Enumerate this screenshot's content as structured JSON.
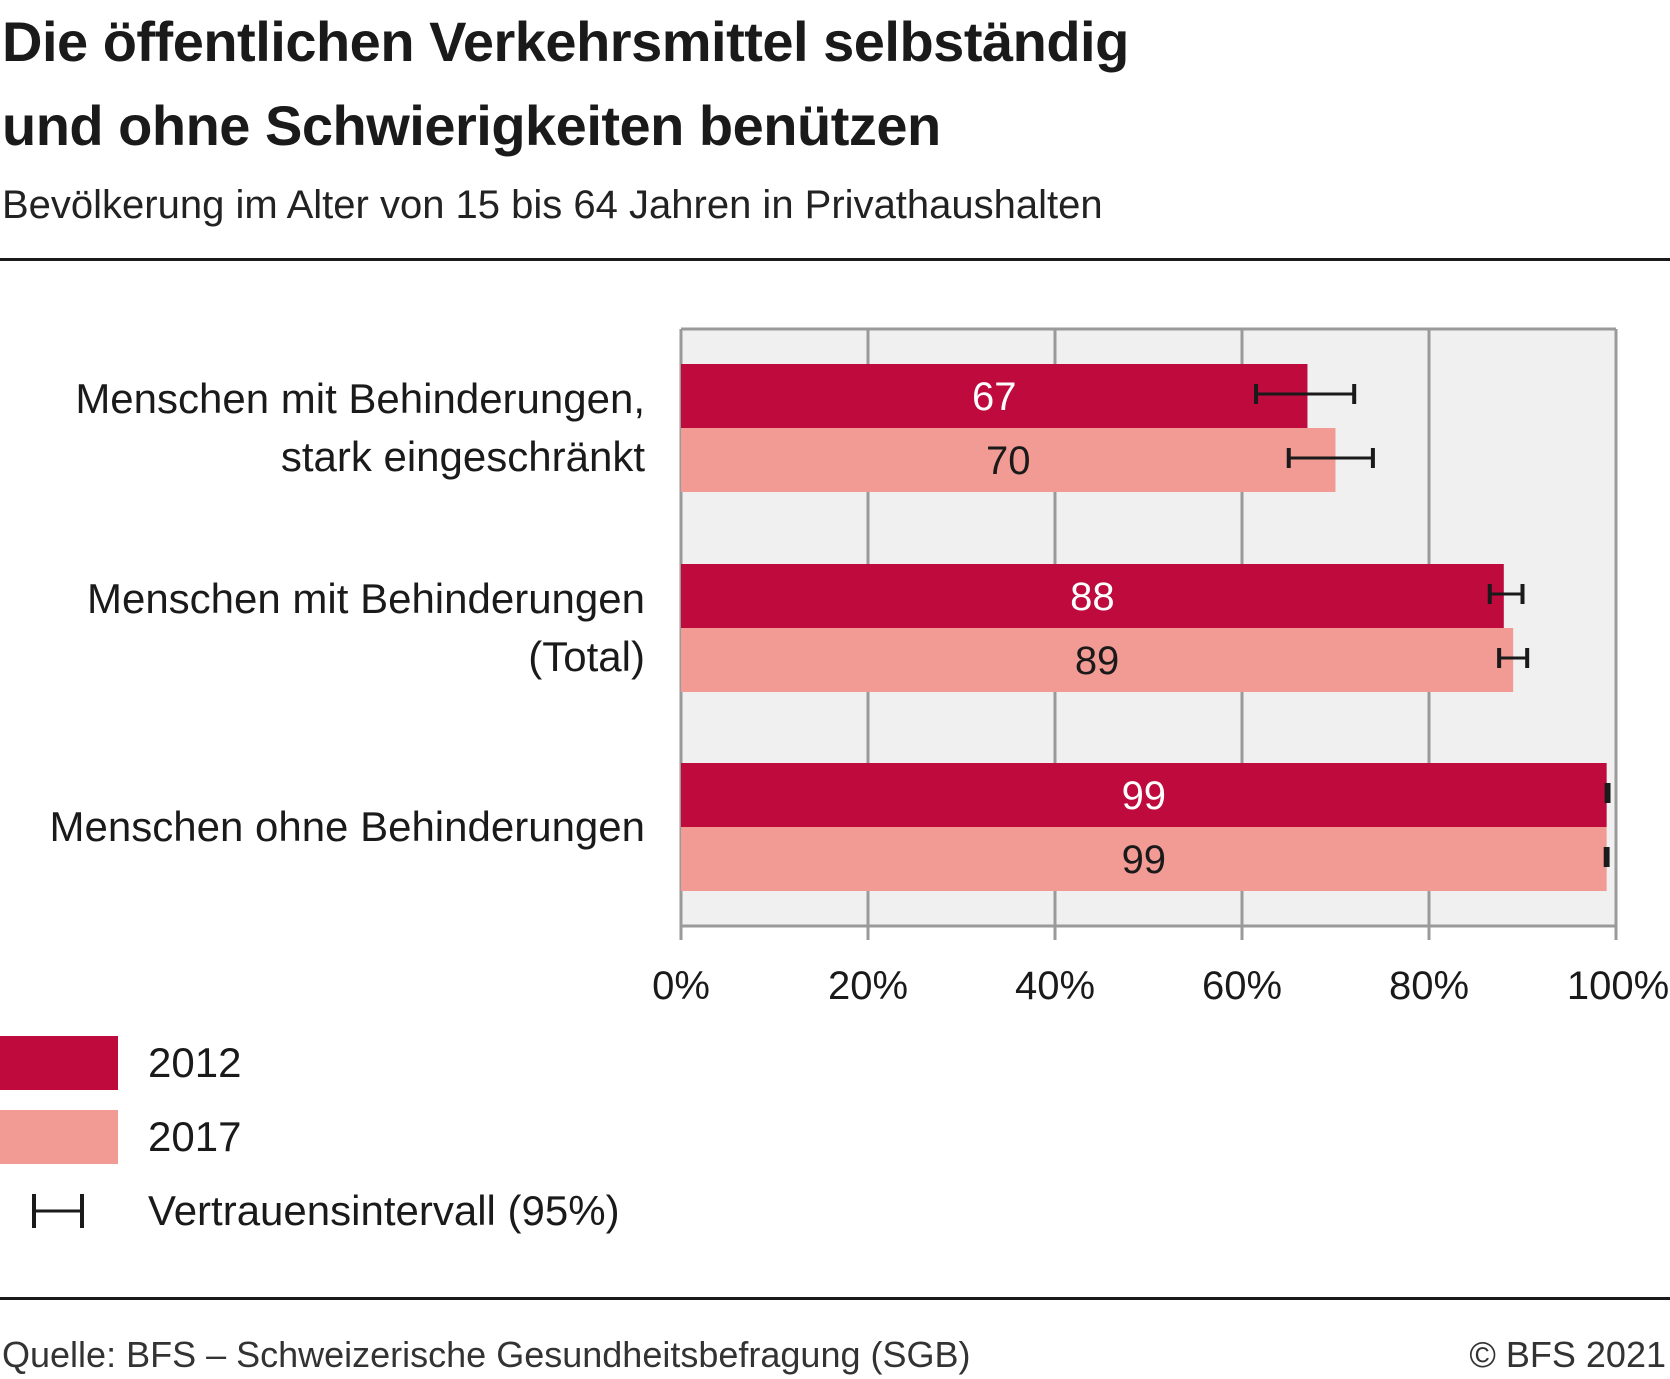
{
  "title_lines": [
    "Die öffentlichen Verkehrsmittel selbständig",
    "und ohne Schwierigkeiten benützen"
  ],
  "subtitle": "Bevölkerung im Alter von 15 bis 64 Jahren in Privathaushalten",
  "source": "Quelle: BFS – Schweizerische Gesundheitsbefragung (SGB)",
  "copyright": "© BFS 2021",
  "legend": {
    "series_2012": "2012",
    "series_2017": "2017",
    "ci": "Vertrauensintervall (95%)"
  },
  "colors": {
    "series_2012": "#be0a3c",
    "series_2017": "#f29a94",
    "plot_bg": "#f0f0f0",
    "grid": "#9a9a9a",
    "error_bar": "#1a1a1a"
  },
  "chart_data": {
    "type": "bar",
    "orientation": "horizontal",
    "title": "Die öffentlichen Verkehrsmittel selbständig und ohne Schwierigkeiten benützen",
    "subtitle": "Bevölkerung im Alter von 15 bis 64 Jahren in Privathaushalten",
    "categories": [
      [
        "Menschen mit Behinderungen,",
        "stark eingeschränkt"
      ],
      [
        "Menschen mit Behinderungen",
        "(Total)"
      ],
      [
        "Menschen ohne Behinderungen"
      ]
    ],
    "series": [
      {
        "name": "2012",
        "values": [
          67,
          88,
          99
        ],
        "labels": [
          "67",
          "88",
          "99"
        ],
        "ci": [
          [
            61.5,
            72
          ],
          [
            86.5,
            90
          ],
          [
            99,
            99.2
          ]
        ]
      },
      {
        "name": "2017",
        "values": [
          70,
          89,
          99
        ],
        "labels": [
          "70",
          "89",
          "99"
        ],
        "ci": [
          [
            65,
            74
          ],
          [
            87.5,
            90.5
          ],
          [
            98.9,
            99.1
          ]
        ]
      }
    ],
    "xlim": [
      0,
      100
    ],
    "xticks": [
      "0%",
      "20%",
      "40%",
      "60%",
      "80%",
      "100%"
    ],
    "xlabel": "",
    "ylabel": "",
    "grid": true,
    "legend_position": "bottom-left"
  }
}
